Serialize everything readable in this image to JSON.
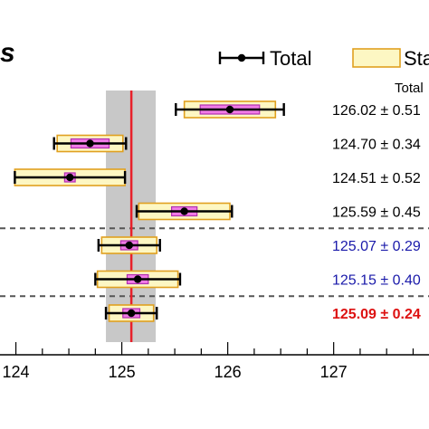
{
  "chart_data": {
    "type": "error-bar",
    "corner_text": "s",
    "header_label": "Total",
    "legend": {
      "total_label": "Total",
      "stat_label": "Sta"
    },
    "xlim": [
      123.85,
      127.9
    ],
    "xticks": [
      124,
      125,
      126,
      127
    ],
    "xtick_labels": [
      "124",
      "125",
      "126",
      "127"
    ],
    "reference_value": 125.09,
    "reference_band": [
      124.85,
      125.32
    ],
    "points": [
      {
        "value": 126.02,
        "total_err": 0.51,
        "syst_err": 0.43,
        "stat_err": 0.28,
        "label": "126.02 ± 0.51",
        "color": "#000000"
      },
      {
        "value": 124.7,
        "total_err": 0.34,
        "syst_err": 0.31,
        "stat_err": 0.18,
        "label": "124.70 ± 0.34",
        "color": "#000000"
      },
      {
        "value": 124.51,
        "total_err": 0.52,
        "syst_err": 0.52,
        "stat_err": 0.05,
        "label": "124.51 ± 0.52",
        "color": "#000000"
      },
      {
        "value": 125.59,
        "total_err": 0.45,
        "syst_err": 0.43,
        "stat_err": 0.12,
        "label": "125.59 ± 0.45",
        "color": "#000000"
      },
      {
        "value": 125.07,
        "total_err": 0.29,
        "syst_err": 0.26,
        "stat_err": 0.08,
        "label": "125.07 ± 0.29",
        "color": "#1a1aaa"
      },
      {
        "value": 125.15,
        "total_err": 0.4,
        "syst_err": 0.38,
        "stat_err": 0.1,
        "label": "125.15 ± 0.40",
        "color": "#1a1aaa"
      },
      {
        "value": 125.09,
        "total_err": 0.24,
        "syst_err": 0.21,
        "stat_err": 0.08,
        "label": "125.09 ± 0.24",
        "color": "#dd1111",
        "bold": true
      }
    ],
    "separators_after": [
      3,
      5
    ],
    "colors": {
      "reference_line": "#e8202a",
      "band": "#c8c8c8",
      "stat_box_fill": "#fdf7c3",
      "stat_box_edge": "#e0a020",
      "syst_box_fill": "#f07ae6",
      "syst_box_edge": "#b030b0"
    }
  }
}
